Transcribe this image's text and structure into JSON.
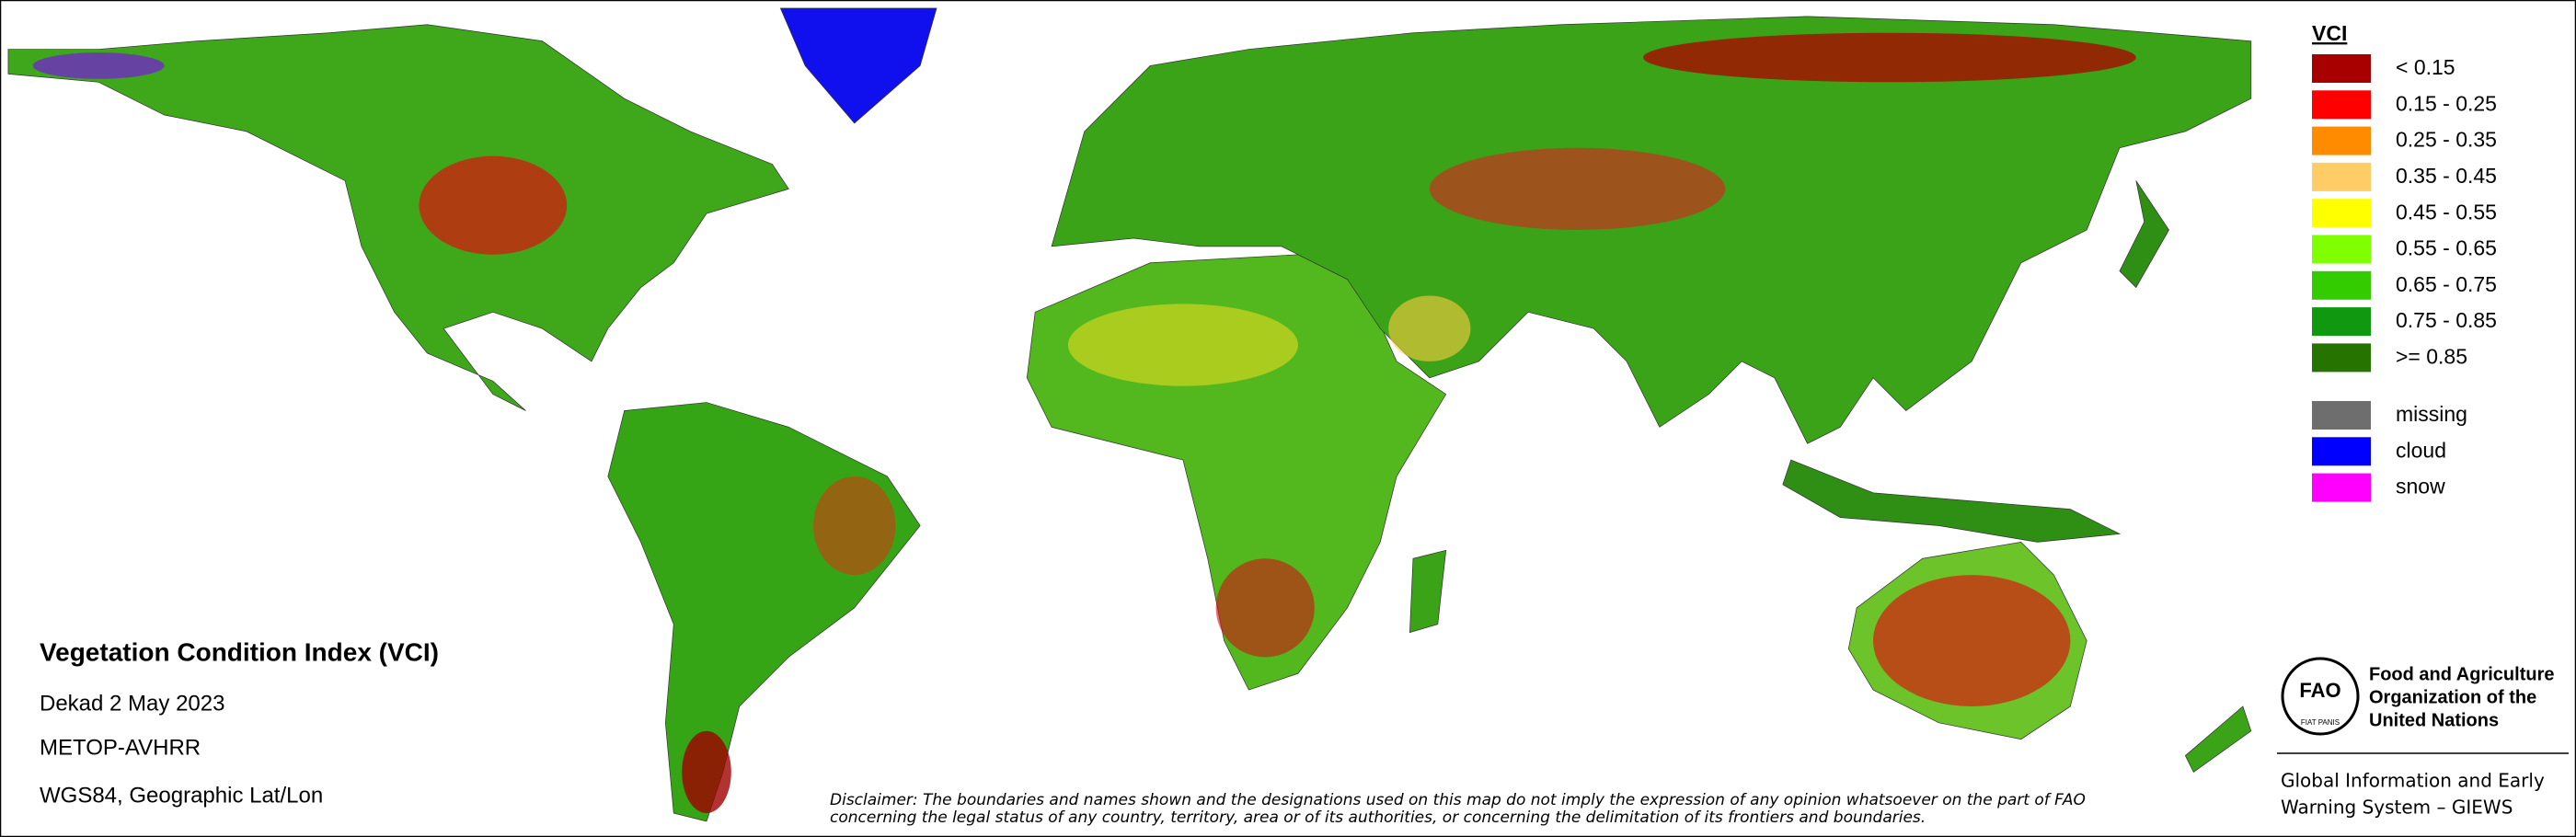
{
  "legend": {
    "title": "VCI",
    "items": [
      {
        "label": "< 0.15",
        "color": "#a80000"
      },
      {
        "label": "0.15 - 0.25",
        "color": "#ff0000"
      },
      {
        "label": "0.25 - 0.35",
        "color": "#ff8c00"
      },
      {
        "label": "0.35 - 0.45",
        "color": "#ffcc66"
      },
      {
        "label": "0.45 - 0.55",
        "color": "#ffff00"
      },
      {
        "label": "0.55 - 0.65",
        "color": "#80ff00"
      },
      {
        "label": "0.65 - 0.75",
        "color": "#33cc00"
      },
      {
        "label": "0.75 - 0.85",
        "color": "#109910"
      },
      {
        "label": ">= 0.85",
        "color": "#267300"
      }
    ],
    "extra": [
      {
        "label": "missing",
        "color": "#6e6e6e"
      },
      {
        "label": "cloud",
        "color": "#0000ff"
      },
      {
        "label": "snow",
        "color": "#ff00ff"
      }
    ]
  },
  "info": {
    "title": "Vegetation Condition Index (VCI)",
    "lines": [
      "Dekad 2 May 2023",
      "METOP-AVHRR",
      "WGS84, Geographic Lat/Lon"
    ]
  },
  "disclaimer": [
    "Disclaimer: The boundaries and names shown and the designations used on this map do not imply the expression of any opinion whatsoever on the part of FAO",
    "concerning the legal status of any country, territory, area or of its authorities, or concerning the delimitation of its frontiers and boundaries."
  ],
  "logo": {
    "mark": "FAO",
    "motto": "FIAT PANIS",
    "org": [
      "Food and Agriculture",
      "Organization of the",
      "United Nations"
    ],
    "system": [
      "Global Information and Early",
      "Warning System – GIEWS"
    ]
  }
}
